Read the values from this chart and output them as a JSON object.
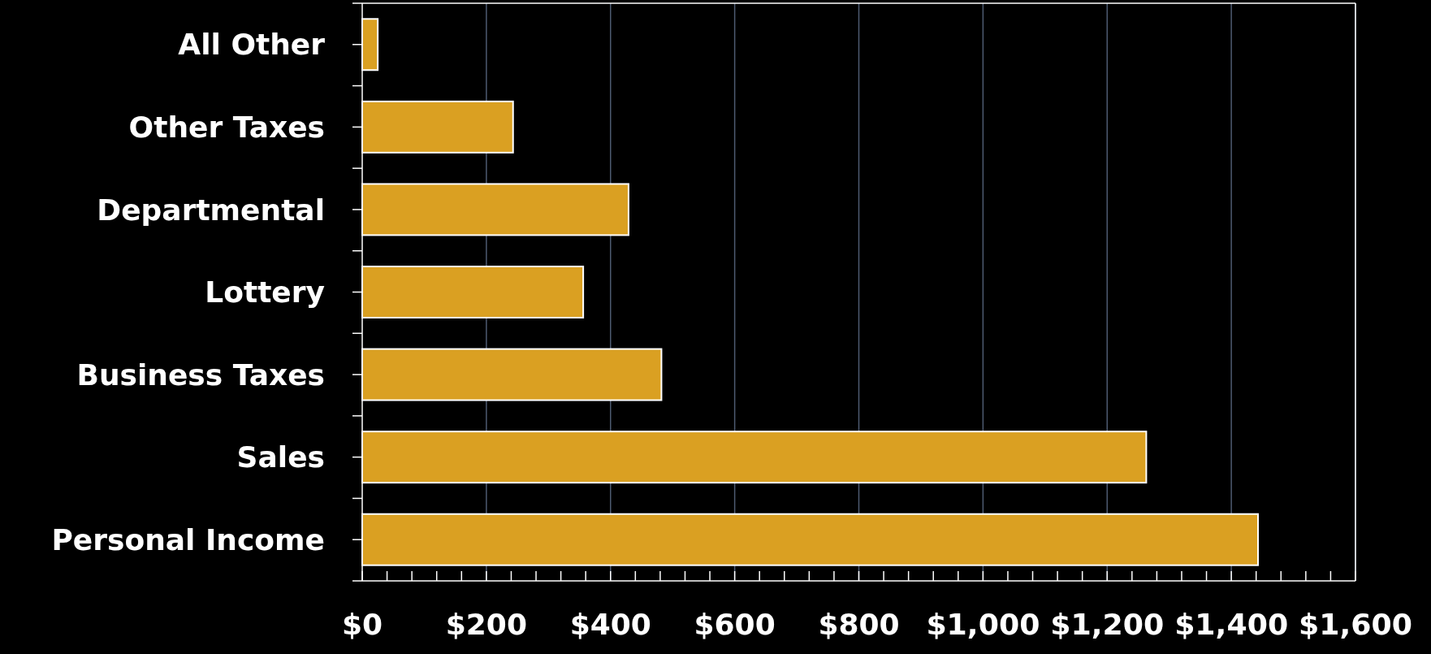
{
  "chart_data": {
    "type": "bar",
    "orientation": "horizontal",
    "categories": [
      "All Other",
      "Other Taxes",
      "Departmental",
      "Lottery",
      "Business Taxes",
      "Sales",
      "Personal Income"
    ],
    "values": [
      25,
      243,
      429,
      356,
      482,
      1263,
      1443
    ],
    "color": "#daa022",
    "xlim": [
      0,
      1600
    ],
    "xticks": [
      {
        "value": 0,
        "label": "$0"
      },
      {
        "value": 40,
        "label": null
      },
      {
        "value": 80,
        "label": null
      },
      {
        "value": 120,
        "label": null
      },
      {
        "value": 160,
        "label": null
      },
      {
        "value": 200,
        "label": "$200"
      },
      {
        "value": 240,
        "label": null
      },
      {
        "value": 280,
        "label": null
      },
      {
        "value": 320,
        "label": null
      },
      {
        "value": 360,
        "label": null
      },
      {
        "value": 400,
        "label": "$400"
      },
      {
        "value": 440,
        "label": null
      },
      {
        "value": 480,
        "label": null
      },
      {
        "value": 520,
        "label": null
      },
      {
        "value": 560,
        "label": null
      },
      {
        "value": 600,
        "label": "$600"
      },
      {
        "value": 640,
        "label": null
      },
      {
        "value": 680,
        "label": null
      },
      {
        "value": 720,
        "label": null
      },
      {
        "value": 760,
        "label": null
      },
      {
        "value": 800,
        "label": "$800"
      },
      {
        "value": 840,
        "label": null
      },
      {
        "value": 880,
        "label": null
      },
      {
        "value": 920,
        "label": null
      },
      {
        "value": 960,
        "label": null
      },
      {
        "value": 1000,
        "label": "$1,000"
      },
      {
        "value": 1040,
        "label": null
      },
      {
        "value": 1080,
        "label": null
      },
      {
        "value": 1120,
        "label": null
      },
      {
        "value": 1160,
        "label": null
      },
      {
        "value": 1200,
        "label": "$1,200"
      },
      {
        "value": 1240,
        "label": null
      },
      {
        "value": 1280,
        "label": null
      },
      {
        "value": 1320,
        "label": null
      },
      {
        "value": 1360,
        "label": null
      },
      {
        "value": 1400,
        "label": "$1,400"
      },
      {
        "value": 1440,
        "label": null
      },
      {
        "value": 1480,
        "label": null
      },
      {
        "value": 1520,
        "label": null
      },
      {
        "value": 1560,
        "label": null
      },
      {
        "value": 1600,
        "label": "$1,600"
      }
    ],
    "grid": "x"
  }
}
